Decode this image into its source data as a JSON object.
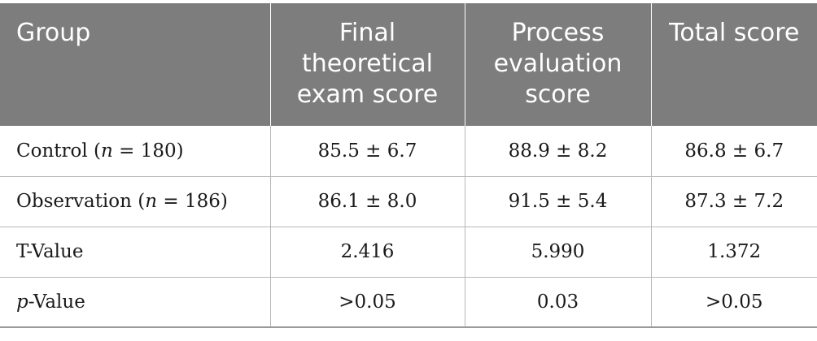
{
  "table": {
    "headers": {
      "group": "Group",
      "final_exam": "Final theoretical exam score",
      "process_eval": "Process evaluation score",
      "total": "Total score"
    },
    "rows": [
      {
        "label_prefix": "Control (",
        "label_italic": "n",
        "label_suffix": " = 180)",
        "final_exam": "85.5 ± 6.7",
        "process_eval": "88.9 ± 8.2",
        "total": "86.8 ± 6.7"
      },
      {
        "label_prefix": "Observation (",
        "label_italic": "n",
        "label_suffix": " = 186)",
        "final_exam": "86.1 ± 8.0",
        "process_eval": "91.5 ± 5.4",
        "total": "87.3 ± 7.2"
      },
      {
        "label_prefix": "T-Value",
        "label_italic": "",
        "label_suffix": "",
        "final_exam": "2.416",
        "process_eval": "5.990",
        "total": "1.372"
      },
      {
        "label_prefix": "",
        "label_italic": "p",
        "label_suffix": "-Value",
        "final_exam": ">0.05",
        "process_eval": "0.03",
        "total": ">0.05"
      }
    ]
  },
  "colors": {
    "header_bg": "#7d7d7d",
    "header_text": "#ffffff",
    "grid": "#b8b8b8"
  }
}
